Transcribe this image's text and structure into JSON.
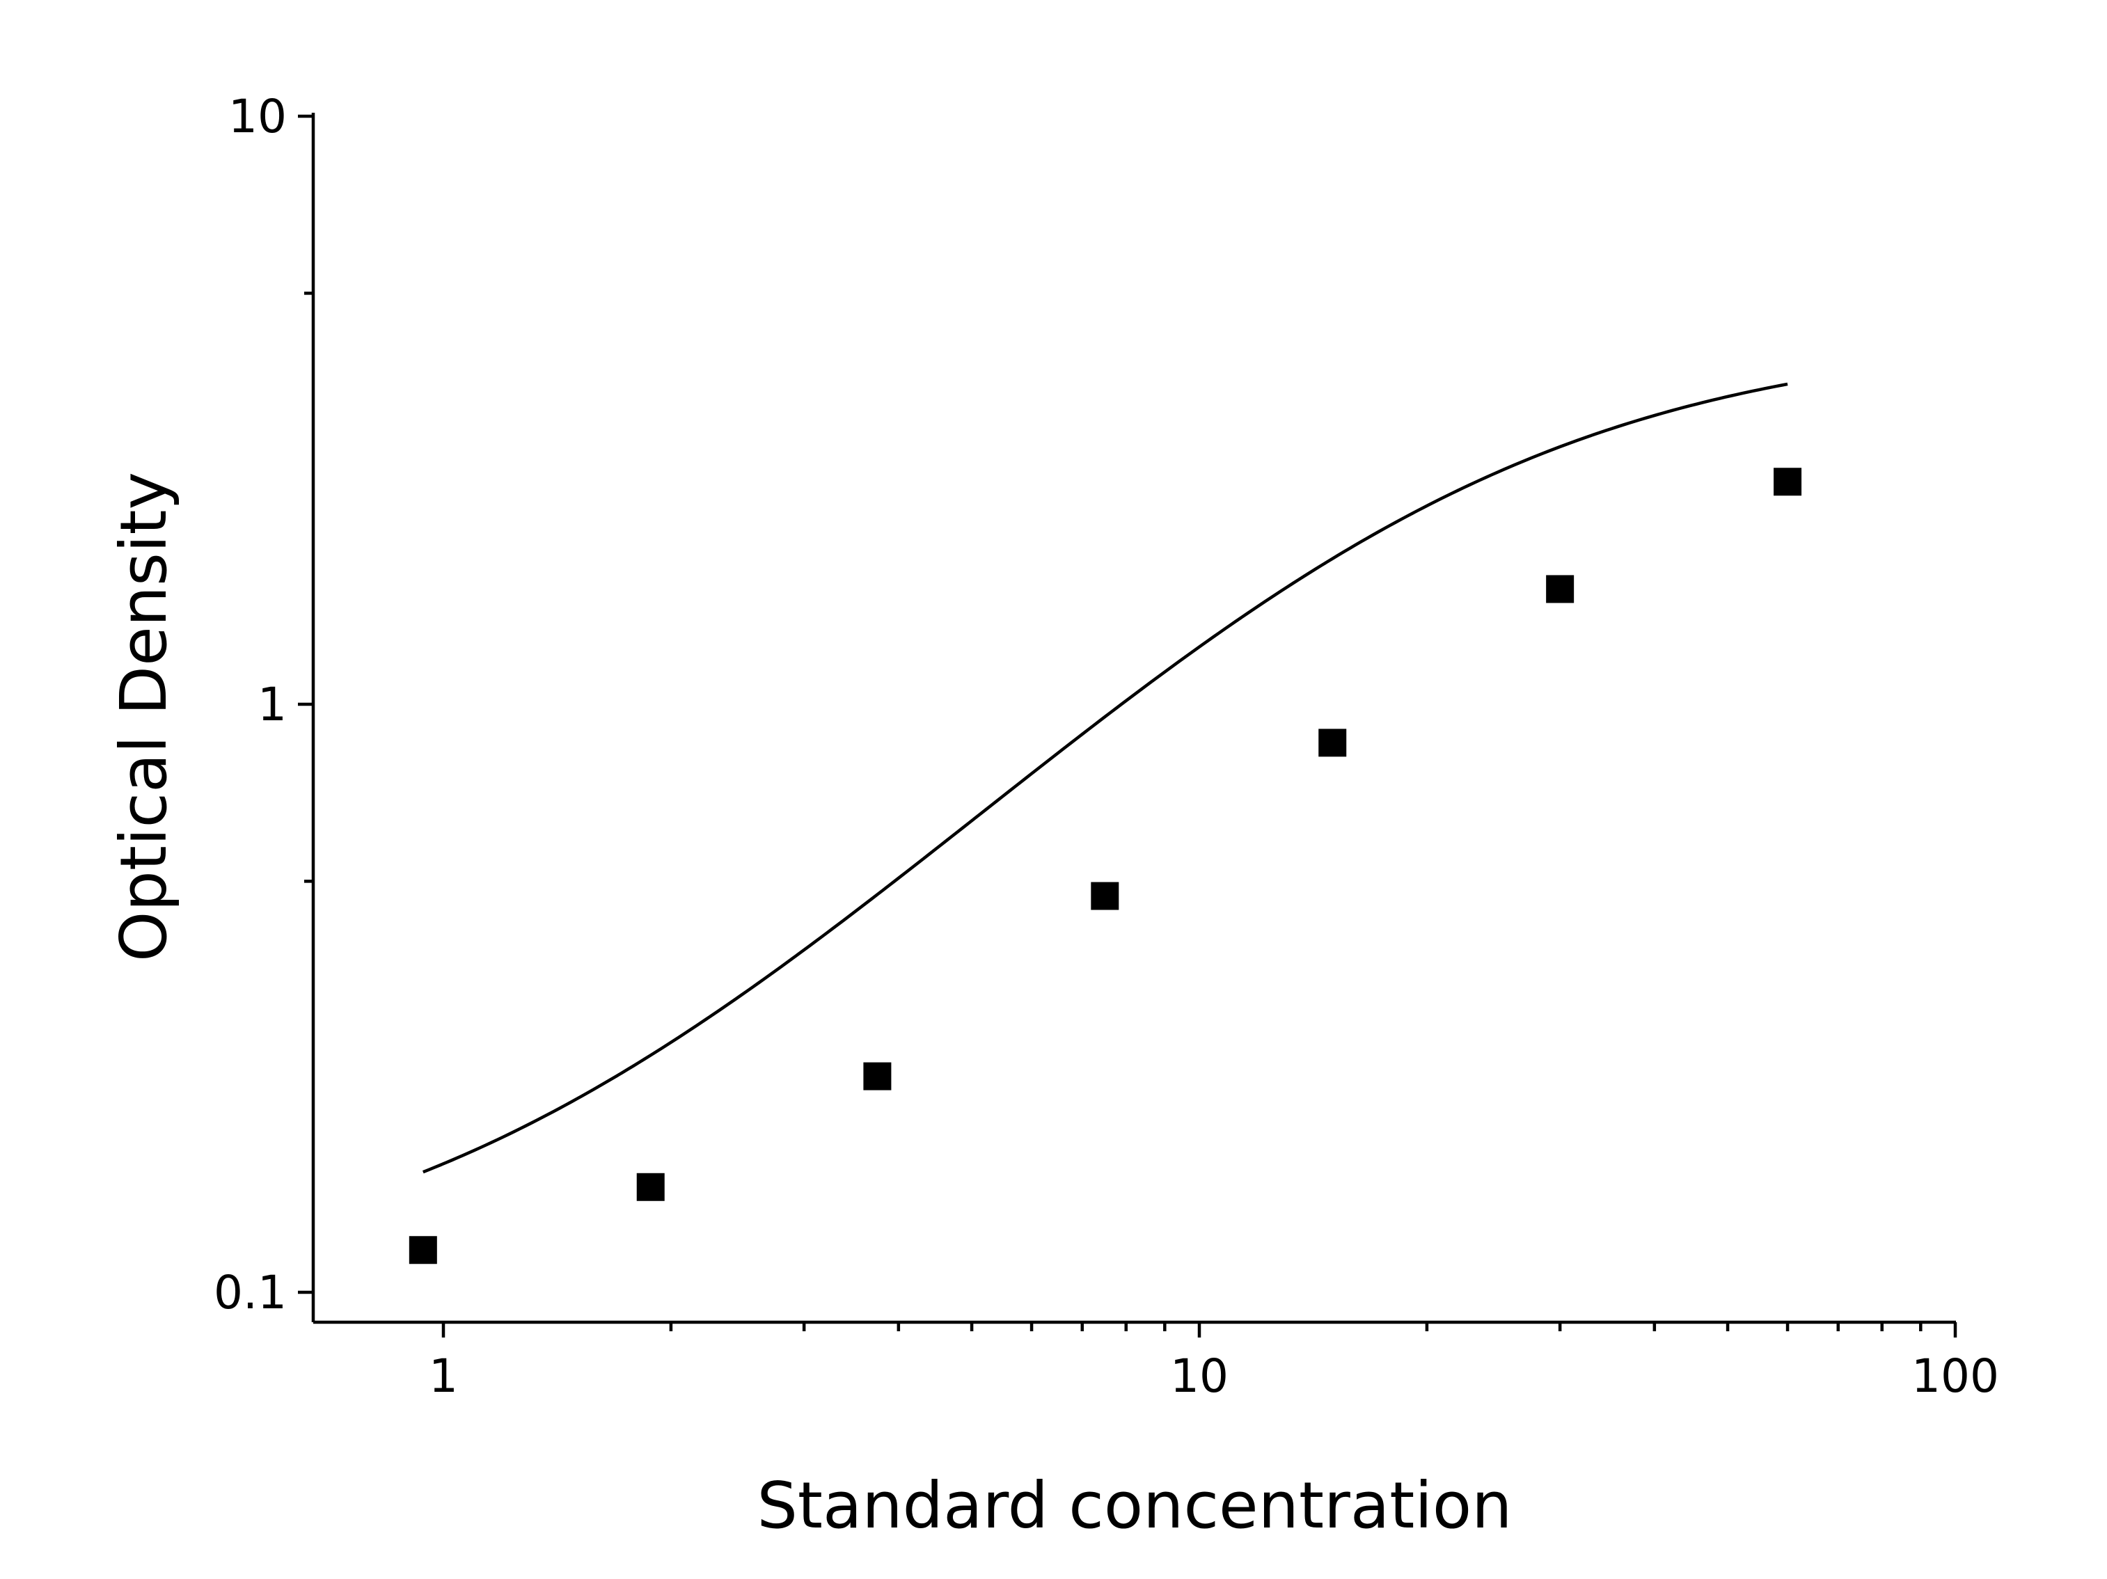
{
  "chart_data": {
    "type": "scatter",
    "xlabel": "Standard concentration",
    "ylabel": "Optical Density",
    "x_scale": "log",
    "y_scale": "log",
    "xlim": [
      0.8,
      100
    ],
    "ylim": [
      0.089,
      10
    ],
    "x_ticks": [
      {
        "value": 1,
        "label": "1"
      },
      {
        "value": 10,
        "label": "10"
      },
      {
        "value": 100,
        "label": "100"
      }
    ],
    "y_ticks": [
      {
        "value": 0.1,
        "label": "0.1"
      },
      {
        "value": 1,
        "label": "1"
      },
      {
        "value": 10,
        "label": "10"
      }
    ],
    "x_minor_ticks": [
      2,
      3,
      4,
      5,
      6,
      7,
      8,
      9,
      20,
      30,
      40,
      50,
      60,
      70,
      80,
      90
    ],
    "y_minor_ticks": [
      0.5,
      5
    ],
    "grid": false,
    "legend": "none",
    "series": [
      {
        "marker": "square",
        "color": "#000000",
        "x": [
          0.94,
          1.88,
          3.75,
          7.5,
          15,
          30,
          60
        ],
        "y": [
          0.118,
          0.151,
          0.233,
          0.472,
          0.86,
          1.57,
          2.39
        ]
      }
    ],
    "fit_curve": {
      "type": "4PL",
      "color": "#000000",
      "params": {
        "A": 0.1,
        "B": 1.38,
        "C": 20,
        "D": 4.25
      },
      "x_range": [
        0.94,
        60
      ]
    }
  }
}
